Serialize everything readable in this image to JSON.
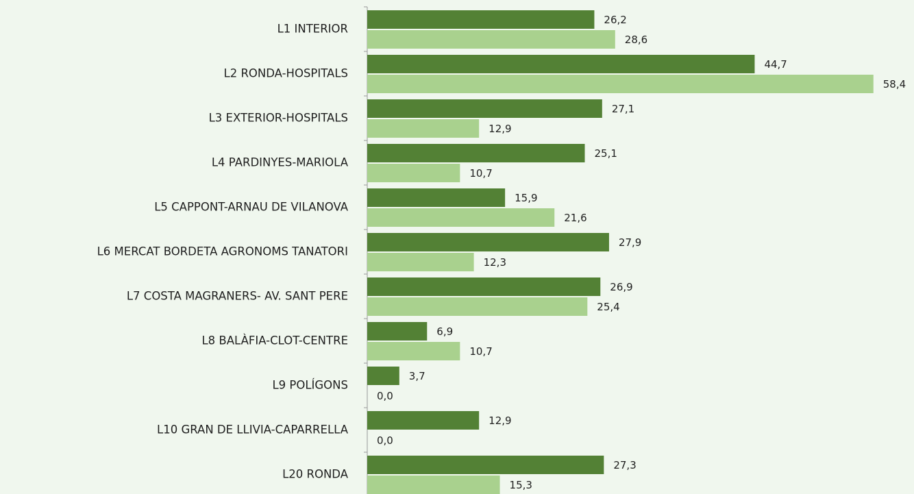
{
  "chart_data": {
    "type": "bar",
    "orientation": "horizontal",
    "categories": [
      "L1 INTERIOR",
      "L2 RONDA-HOSPITALS",
      "L3 EXTERIOR-HOSPITALS",
      "L4 PARDINYES-MARIOLA",
      "L5 CAPPONT-ARNAU DE VILANOVA",
      "L6 MERCAT BORDETA AGRONOMS TANATORI",
      "L7 COSTA MAGRANERS- AV. SANT PERE",
      "L8 BALÀFIA-CLOT-CENTRE",
      "L9 POLÍGONS",
      "L10 GRAN DE LLIVIA-CAPARRELLA",
      "L20 RONDA"
    ],
    "series": [
      {
        "color": "#538135",
        "values": [
          26.2,
          44.7,
          27.1,
          25.1,
          15.9,
          27.9,
          26.9,
          6.9,
          3.7,
          12.9,
          27.3
        ],
        "value_labels": [
          "26,2",
          "44,7",
          "27,1",
          "25,1",
          "15,9",
          "27,9",
          "26,9",
          "6,9",
          "3,7",
          "12,9",
          "27,3"
        ]
      },
      {
        "color": "#a9d18e",
        "values": [
          28.6,
          58.4,
          12.9,
          10.7,
          21.6,
          12.3,
          25.4,
          10.7,
          0.0,
          0.0,
          15.3
        ],
        "value_labels": [
          "28,6",
          "58,4",
          "12,9",
          "10,7",
          "21,6",
          "12,3",
          "25,4",
          "10,7",
          "0,0",
          "0,0",
          "15,3"
        ]
      }
    ],
    "xlim": [
      0,
      60
    ]
  }
}
